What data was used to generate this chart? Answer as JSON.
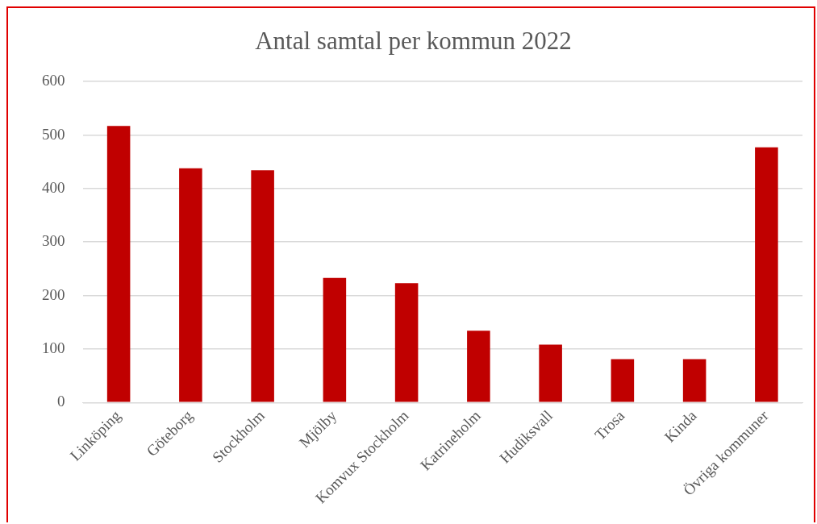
{
  "chart_data": {
    "type": "bar",
    "title": "Antal samtal per kommun 2022",
    "categories": [
      "Linköping",
      "Göteborg",
      "Stockholm",
      "Mjölby",
      "Komvux Stockholm",
      "Katrineholm",
      "Hudiksvall",
      "Trosa",
      "Kinda",
      "Övriga kommuner"
    ],
    "values": [
      517,
      438,
      434,
      233,
      223,
      134,
      108,
      81,
      81,
      477
    ],
    "color": "#c00000",
    "ylim": [
      0,
      600
    ],
    "yticks": [
      0,
      100,
      200,
      300,
      400,
      500,
      600
    ],
    "grid": "y",
    "legend": false
  }
}
